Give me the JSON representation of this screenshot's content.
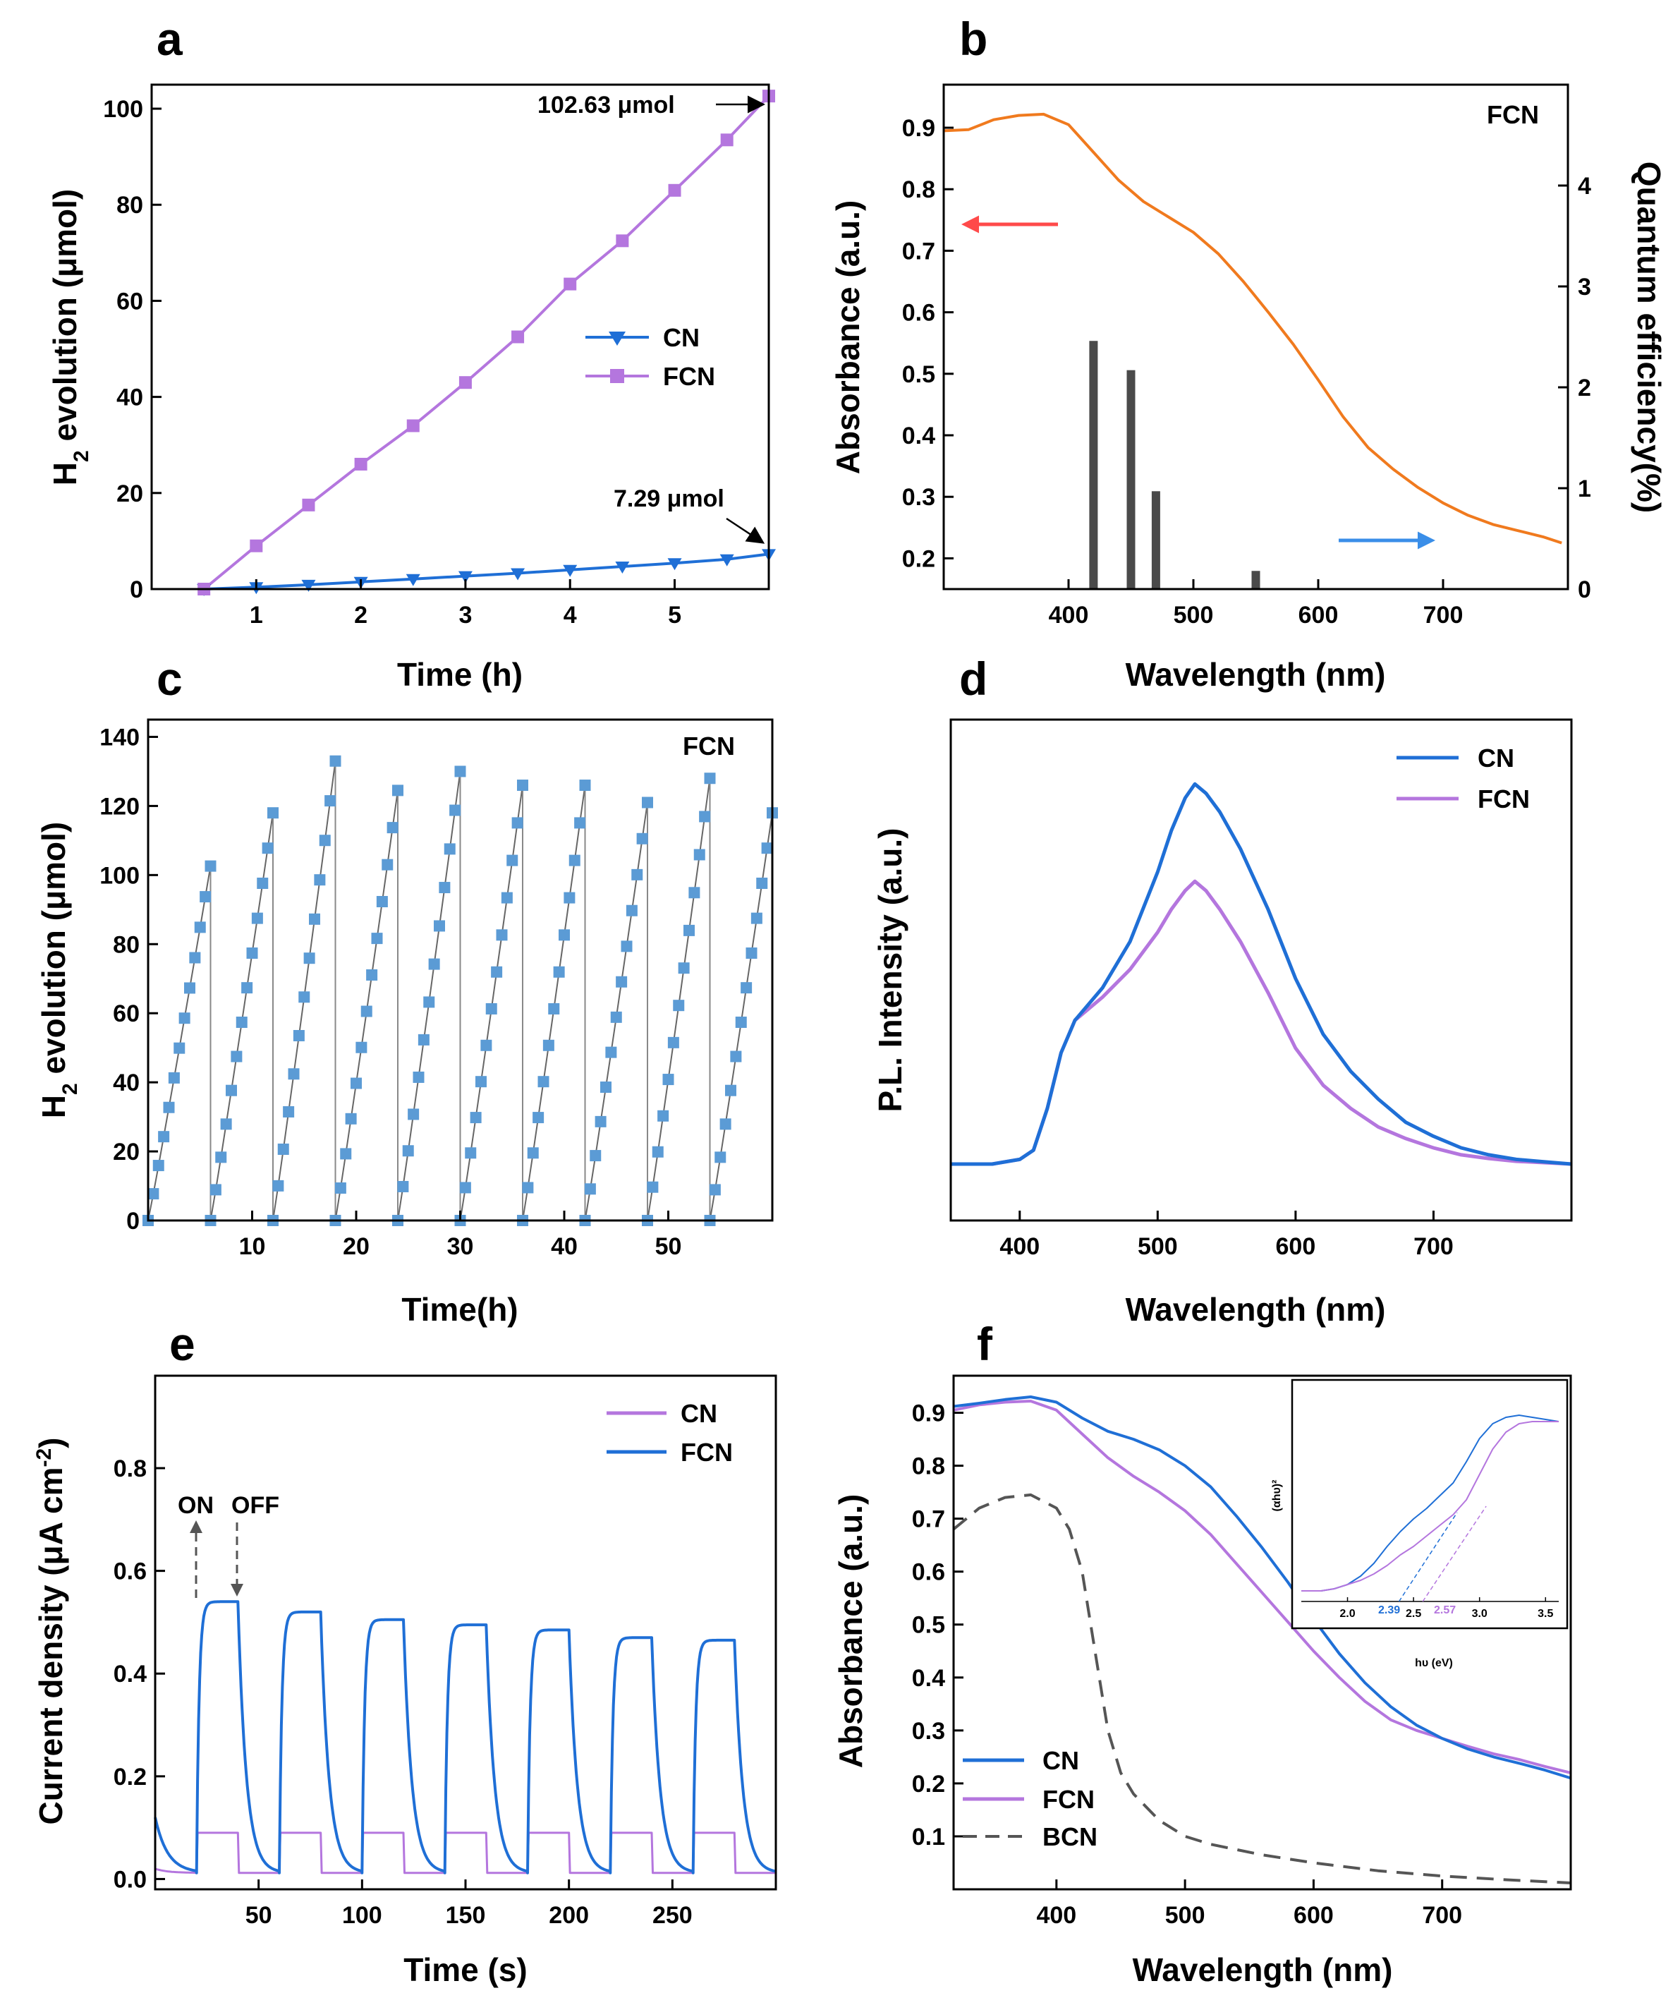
{
  "colors": {
    "cn": "#1f6fd6",
    "fcn": "#b476de",
    "bcn": "#555555",
    "orange": "#f07a1e",
    "square": "#5b9bd5",
    "bar": "#4a4a4a",
    "red_arrow": "#ff4a4a",
    "blue_arrow": "#3a8ee8"
  },
  "chart_data": [
    {
      "id": "a",
      "type": "line",
      "panel_label": "a",
      "xlabel": "Time (h)",
      "ylabel_main": "H",
      "ylabel_sub": "2",
      "ylabel_rest": " evolution (μmol)",
      "xlim": [
        0,
        5.9
      ],
      "ylim": [
        0,
        105
      ],
      "xticks": [
        "1",
        "2",
        "3",
        "4",
        "5"
      ],
      "yticks": [
        "0",
        "20",
        "40",
        "60",
        "80",
        "100"
      ],
      "series": [
        {
          "name": "CN",
          "x": [
            0.5,
            1,
            1.5,
            2,
            2.5,
            3,
            3.5,
            4,
            4.5,
            5,
            5.5,
            5.9
          ],
          "y": [
            0,
            0.4,
            0.9,
            1.5,
            2.1,
            2.7,
            3.3,
            4.0,
            4.7,
            5.4,
            6.2,
            7.29
          ]
        },
        {
          "name": "FCN",
          "x": [
            0.5,
            1,
            1.5,
            2,
            2.5,
            3,
            3.5,
            4,
            4.5,
            5,
            5.5,
            5.9
          ],
          "y": [
            0,
            9,
            17.5,
            26,
            34,
            43,
            52.5,
            63.5,
            72.5,
            83,
            93.5,
            102.63
          ]
        }
      ],
      "annotations": [
        "102.63 μmol",
        "7.29 μmol"
      ]
    },
    {
      "id": "b",
      "type": "line",
      "panel_label": "b",
      "xlabel": "Wavelength (nm)",
      "ylabel": "Absorbance (a.u.)",
      "y2label": "Quantum efficiency(%)",
      "xlim": [
        300,
        800
      ],
      "ylim": [
        0.15,
        0.97
      ],
      "y2lim": [
        0,
        5.0
      ],
      "xticks": [
        "400",
        "500",
        "600",
        "700"
      ],
      "yticks": [
        "0.2",
        "0.3",
        "0.4",
        "0.5",
        "0.6",
        "0.7",
        "0.8",
        "0.9"
      ],
      "y2ticks": [
        "0",
        "1",
        "2",
        "3",
        "4"
      ],
      "series": [
        {
          "name": "FCN absorbance",
          "x": [
            300,
            320,
            340,
            360,
            380,
            400,
            420,
            440,
            460,
            480,
            500,
            520,
            540,
            560,
            580,
            600,
            620,
            640,
            660,
            680,
            700,
            720,
            740,
            760,
            780,
            795
          ],
          "y": [
            0.895,
            0.897,
            0.913,
            0.92,
            0.922,
            0.905,
            0.86,
            0.815,
            0.78,
            0.755,
            0.73,
            0.695,
            0.65,
            0.6,
            0.548,
            0.49,
            0.43,
            0.38,
            0.345,
            0.315,
            0.29,
            0.27,
            0.255,
            0.245,
            0.235,
            0.225
          ]
        }
      ],
      "bars": {
        "name": "Quantum efficiency",
        "x": [
          420,
          450,
          470,
          550
        ],
        "y": [
          2.46,
          2.17,
          0.97,
          0.18
        ]
      },
      "legend_text": "FCN"
    },
    {
      "id": "c",
      "type": "line",
      "panel_label": "c",
      "xlabel": "Time(h)",
      "ylabel_main": "H",
      "ylabel_sub": "2",
      "ylabel_rest": " evolution (μmol)",
      "xlim": [
        0,
        60
      ],
      "ylim": [
        0,
        145
      ],
      "xticks": [
        "10",
        "20",
        "30",
        "40",
        "50"
      ],
      "yticks": [
        "0",
        "20",
        "40",
        "60",
        "80",
        "100",
        "120",
        "140"
      ],
      "cycle_peaks": [
        102.6,
        118,
        133,
        124.5,
        130,
        126,
        126,
        121,
        128,
        118
      ],
      "cycle_hours": 6,
      "points_per_cycle": 12,
      "legend_text": "FCN"
    },
    {
      "id": "d",
      "type": "line",
      "panel_label": "d",
      "xlabel": "Wavelength (nm)",
      "ylabel": "P.L. Intensity (a.u.)",
      "xlim": [
        350,
        800
      ],
      "ylim": [
        0,
        1.2
      ],
      "xticks": [
        "400",
        "500",
        "600",
        "700"
      ],
      "series": [
        {
          "name": "CN",
          "x": [
            350,
            380,
            400,
            410,
            420,
            430,
            440,
            460,
            480,
            500,
            510,
            520,
            527,
            535,
            545,
            560,
            580,
            600,
            620,
            640,
            660,
            680,
            700,
            720,
            740,
            760,
            780,
            800
          ],
          "y": [
            0,
            0,
            0.01,
            0.03,
            0.12,
            0.24,
            0.31,
            0.38,
            0.48,
            0.63,
            0.72,
            0.79,
            0.82,
            0.8,
            0.76,
            0.68,
            0.55,
            0.4,
            0.28,
            0.2,
            0.14,
            0.09,
            0.06,
            0.035,
            0.02,
            0.01,
            0.005,
            0
          ]
        },
        {
          "name": "FCN",
          "x": [
            350,
            380,
            400,
            410,
            420,
            430,
            440,
            460,
            480,
            500,
            510,
            520,
            527,
            535,
            545,
            560,
            580,
            600,
            620,
            640,
            660,
            680,
            700,
            720,
            740,
            760,
            780,
            800
          ],
          "y": [
            0,
            0,
            0.01,
            0.03,
            0.12,
            0.24,
            0.31,
            0.36,
            0.42,
            0.5,
            0.55,
            0.59,
            0.61,
            0.59,
            0.55,
            0.48,
            0.37,
            0.25,
            0.17,
            0.12,
            0.08,
            0.055,
            0.035,
            0.02,
            0.012,
            0.006,
            0.003,
            0
          ]
        }
      ]
    },
    {
      "id": "e",
      "type": "line",
      "panel_label": "e",
      "xlabel": "Time (s)",
      "ylabel": "Current density (μA cm",
      "ylabel_sup": "-2",
      "ylabel_close": ")",
      "xlim": [
        0,
        300
      ],
      "ylim": [
        -0.02,
        0.98
      ],
      "xticks": [
        "50",
        "100",
        "150",
        "200",
        "250"
      ],
      "yticks": [
        "0.0",
        "0.2",
        "0.4",
        "0.6",
        "0.8"
      ],
      "on_times": [
        20,
        60,
        100,
        140,
        180,
        220,
        260
      ],
      "on_duration": 20,
      "series": [
        {
          "name": "CN",
          "plateaus": [
            0.09,
            0.09,
            0.09,
            0.09,
            0.09,
            0.09,
            0.09
          ],
          "baseline": 0.012
        },
        {
          "name": "FCN",
          "plateaus": [
            0.54,
            0.52,
            0.505,
            0.495,
            0.485,
            0.47,
            0.465
          ],
          "baseline": 0.012,
          "start": 0.12
        }
      ],
      "annotations": [
        "ON",
        "OFF"
      ]
    },
    {
      "id": "f",
      "type": "line",
      "panel_label": "f",
      "xlabel": "Wavelength (nm)",
      "ylabel": "Absorbance (a.u.)",
      "xlim": [
        320,
        800
      ],
      "ylim": [
        0,
        0.97
      ],
      "xticks": [
        "400",
        "500",
        "600",
        "700"
      ],
      "yticks": [
        "0.1",
        "0.2",
        "0.3",
        "0.4",
        "0.5",
        "0.6",
        "0.7",
        "0.8",
        "0.9"
      ],
      "series": [
        {
          "name": "CN",
          "style": "solid",
          "x": [
            320,
            340,
            360,
            380,
            400,
            420,
            440,
            460,
            480,
            500,
            520,
            540,
            560,
            580,
            600,
            620,
            640,
            660,
            680,
            700,
            720,
            740,
            760,
            780,
            800
          ],
          "y": [
            0.912,
            0.918,
            0.925,
            0.93,
            0.92,
            0.89,
            0.865,
            0.85,
            0.83,
            0.8,
            0.76,
            0.705,
            0.645,
            0.58,
            0.51,
            0.445,
            0.39,
            0.345,
            0.31,
            0.285,
            0.265,
            0.25,
            0.238,
            0.225,
            0.21
          ]
        },
        {
          "name": "FCN",
          "style": "solid",
          "x": [
            320,
            340,
            360,
            380,
            400,
            420,
            440,
            460,
            480,
            500,
            520,
            540,
            560,
            580,
            600,
            620,
            640,
            660,
            680,
            700,
            720,
            740,
            760,
            780,
            800
          ],
          "y": [
            0.905,
            0.915,
            0.92,
            0.922,
            0.905,
            0.86,
            0.815,
            0.78,
            0.75,
            0.715,
            0.67,
            0.615,
            0.56,
            0.505,
            0.45,
            0.4,
            0.355,
            0.32,
            0.3,
            0.285,
            0.27,
            0.256,
            0.245,
            0.232,
            0.22
          ]
        },
        {
          "name": "BCN",
          "style": "dashed",
          "x": [
            320,
            340,
            360,
            380,
            400,
            410,
            420,
            430,
            440,
            450,
            460,
            480,
            500,
            520,
            540,
            560,
            600,
            650,
            700,
            750,
            800
          ],
          "y": [
            0.68,
            0.72,
            0.74,
            0.745,
            0.72,
            0.68,
            0.6,
            0.45,
            0.3,
            0.22,
            0.18,
            0.13,
            0.1,
            0.085,
            0.075,
            0.065,
            0.05,
            0.035,
            0.025,
            0.018,
            0.012
          ]
        }
      ],
      "inset": {
        "xlabel": "hυ (eV)",
        "ylabel": "(αhυ)²",
        "xlim": [
          1.65,
          3.6
        ],
        "ylim": [
          0,
          1.0
        ],
        "xticks": [
          "2.0",
          "2.5",
          "3.0",
          "3.5"
        ],
        "series": [
          {
            "name": "CN",
            "x": [
              1.65,
              1.8,
              1.9,
              2.0,
              2.1,
              2.2,
              2.3,
              2.4,
              2.5,
              2.6,
              2.7,
              2.8,
              2.9,
              3.0,
              3.1,
              3.2,
              3.3,
              3.4,
              3.5,
              3.6
            ],
            "y": [
              0.05,
              0.05,
              0.06,
              0.08,
              0.12,
              0.18,
              0.26,
              0.33,
              0.39,
              0.44,
              0.5,
              0.56,
              0.66,
              0.77,
              0.84,
              0.87,
              0.88,
              0.87,
              0.86,
              0.85
            ]
          },
          {
            "name": "FCN",
            "x": [
              1.65,
              1.8,
              1.9,
              2.0,
              2.1,
              2.2,
              2.3,
              2.4,
              2.5,
              2.6,
              2.7,
              2.8,
              2.9,
              3.0,
              3.1,
              3.2,
              3.3,
              3.4,
              3.5,
              3.6
            ],
            "y": [
              0.05,
              0.05,
              0.06,
              0.08,
              0.1,
              0.13,
              0.17,
              0.22,
              0.26,
              0.31,
              0.36,
              0.41,
              0.48,
              0.6,
              0.72,
              0.8,
              0.84,
              0.85,
              0.85,
              0.85
            ]
          }
        ],
        "tangents": [
          {
            "name": "CN",
            "x": [
              2.39,
              2.83
            ],
            "y": [
              0,
              0.42
            ]
          },
          {
            "name": "FCN",
            "x": [
              2.57,
              3.05
            ],
            "y": [
              0,
              0.45
            ]
          }
        ],
        "annotations": [
          "2.39",
          "2.57"
        ]
      }
    }
  ]
}
